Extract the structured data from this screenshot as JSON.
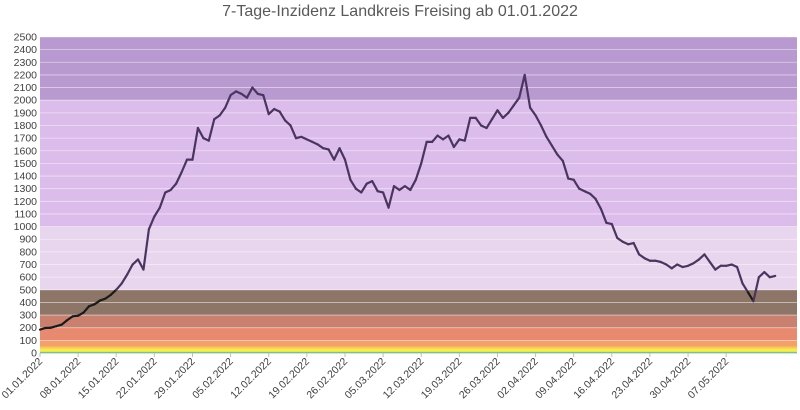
{
  "chart_data": {
    "type": "line",
    "title": "7-Tage-Inzidenz Landkreis Freising ab 01.01.2022",
    "xlabel": "",
    "ylabel": "",
    "ylim": [
      0,
      2500
    ],
    "yticks": [
      0,
      100,
      200,
      300,
      400,
      500,
      600,
      700,
      800,
      900,
      1000,
      1100,
      1200,
      1300,
      1400,
      1500,
      1600,
      1700,
      1800,
      1900,
      2000,
      2100,
      2200,
      2300,
      2400,
      2500
    ],
    "x_tick_labels": [
      "01.01.2022",
      "08.01.2022",
      "15.01.2022",
      "22.01.2022",
      "29.01.2022",
      "05.02.2022",
      "12.02.2022",
      "19.02.2022",
      "26.02.2022",
      "05.03.2022",
      "12.03.2022",
      "19.03.2022",
      "26.03.2022",
      "02.04.2022",
      "09.04.2022",
      "16.04.2022",
      "23.04.2022",
      "30.04.2022",
      "07.05.2022"
    ],
    "x_days_total": 139,
    "grid": true,
    "legend": "none",
    "colors": {
      "line": "#4a3560",
      "line_lowband": "#1a1a1a",
      "grid": "#ffffff"
    },
    "bands": [
      {
        "from": 0,
        "to": 10,
        "color": "#33cc33"
      },
      {
        "from": 10,
        "to": 35,
        "color": "#f3ec4a"
      },
      {
        "from": 35,
        "to": 50,
        "color": "#f7c84a"
      },
      {
        "from": 50,
        "to": 100,
        "color": "#f4a06a"
      },
      {
        "from": 100,
        "to": 200,
        "color": "#e88a70"
      },
      {
        "from": 200,
        "to": 300,
        "color": "#c9806f"
      },
      {
        "from": 300,
        "to": 500,
        "color": "#8d7668"
      },
      {
        "from": 500,
        "to": 1000,
        "color": "#e8d6ee"
      },
      {
        "from": 1000,
        "to": 2000,
        "color": "#dcbcea"
      },
      {
        "from": 2000,
        "to": 2500,
        "color": "#b89ad0"
      }
    ],
    "series": [
      {
        "values": [
          185,
          198,
          200,
          212,
          225,
          260,
          290,
          295,
          320,
          370,
          385,
          415,
          430,
          460,
          500,
          550,
          620,
          700,
          740,
          660,
          980,
          1080,
          1150,
          1270,
          1290,
          1340,
          1430,
          1530,
          1530,
          1780,
          1700,
          1680,
          1850,
          1880,
          1940,
          2040,
          2070,
          2050,
          2020,
          2100,
          2050,
          2040,
          1890,
          1930,
          1910,
          1840,
          1800,
          1700,
          1710,
          1690,
          1670,
          1650,
          1620,
          1610,
          1530,
          1620,
          1530,
          1370,
          1300,
          1270,
          1340,
          1360,
          1280,
          1270,
          1150,
          1320,
          1290,
          1320,
          1290,
          1370,
          1500,
          1670,
          1670,
          1720,
          1690,
          1720,
          1630,
          1690,
          1680,
          1860,
          1860,
          1800,
          1780,
          1850,
          1920,
          1860,
          1900,
          1960,
          2020,
          2200,
          1940,
          1880,
          1800,
          1710,
          1640,
          1570,
          1520,
          1380,
          1370,
          1300,
          1280,
          1260,
          1220,
          1140,
          1030,
          1020,
          910,
          880,
          860,
          870,
          780,
          750,
          730,
          730,
          720,
          700,
          670,
          700,
          680,
          690,
          710,
          740,
          780,
          720,
          660,
          690,
          690,
          700,
          680,
          550,
          480,
          410,
          600,
          640,
          600,
          610
        ]
      }
    ]
  }
}
